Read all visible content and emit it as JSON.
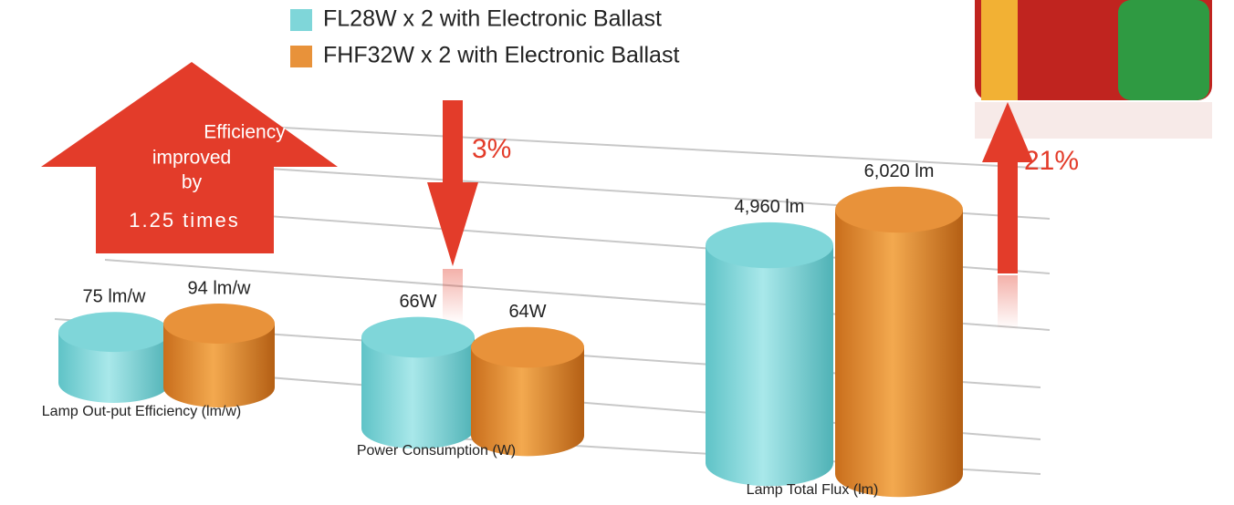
{
  "legend": [
    {
      "name": "FL28W x 2 with Electronic Ballast",
      "color": "#7fd6d9"
    },
    {
      "name": "FHF32W x 2 with Electronic Ballast",
      "color": "#e8923a"
    }
  ],
  "chart_data": [
    {
      "type": "bar",
      "title": "Lamp Out-put Efficiency (lm/w)",
      "values": [
        75,
        94
      ],
      "value_labels": [
        "75 lm/w",
        "94 lm/w"
      ]
    },
    {
      "type": "bar",
      "title": "Power Consumption (W)",
      "values": [
        66,
        64
      ],
      "value_labels": [
        "66W",
        "64W"
      ]
    },
    {
      "type": "bar",
      "title": "Lamp Total Flux (lm)",
      "values": [
        4960,
        6020
      ],
      "value_labels": [
        "4,960 lm",
        "6,020 lm"
      ]
    }
  ],
  "annotations": {
    "efficiency": [
      "Efficiency",
      "improved",
      "by",
      "1.25 times"
    ],
    "power_change": "3%",
    "flux_change": "21%"
  }
}
